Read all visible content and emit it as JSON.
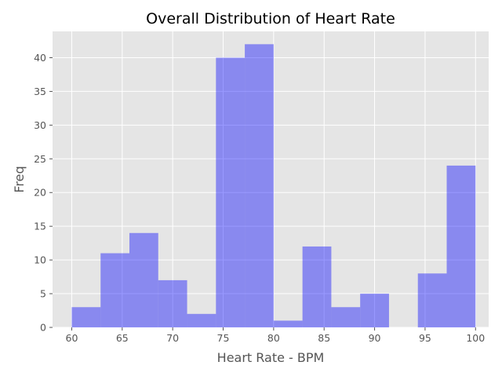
{
  "chart_data": {
    "type": "bar",
    "title": "Overall Distribution of Heart Rate",
    "xlabel": "Heart Rate - BPM",
    "ylabel": "Freq",
    "bin_edges": [
      60,
      62.857,
      65.714,
      68.571,
      71.429,
      74.286,
      77.143,
      80,
      82.857,
      85.714,
      88.571,
      91.429,
      94.286,
      97.143,
      100
    ],
    "values": [
      3,
      11,
      14,
      7,
      2,
      40,
      42,
      1,
      12,
      3,
      5,
      0,
      8,
      24
    ],
    "xlim": [
      58.1,
      101.3
    ],
    "ylim": [
      0,
      43.9
    ],
    "xticks": [
      60,
      65,
      70,
      75,
      80,
      85,
      90,
      95,
      100
    ],
    "yticks": [
      0,
      5,
      10,
      15,
      20,
      25,
      30,
      35,
      40
    ],
    "grid": true,
    "colors": {
      "bar": "#0000ff",
      "bar_opacity": 0.4,
      "plot_background": "#e5e5e5",
      "grid": "#ffffff",
      "text": "#555555"
    }
  }
}
